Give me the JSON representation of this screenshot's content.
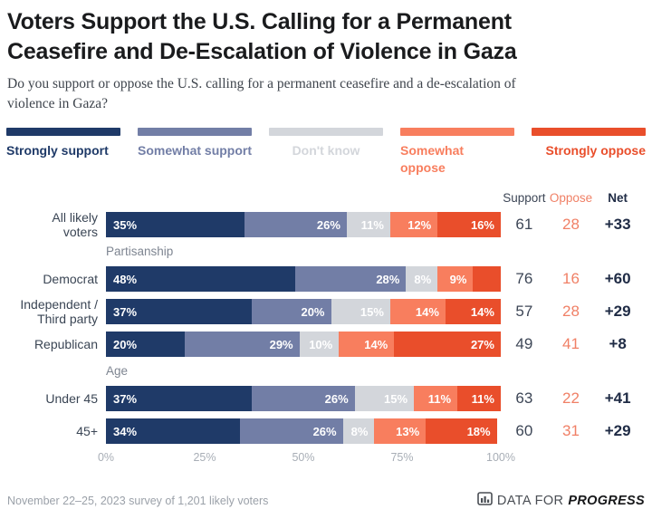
{
  "header": {
    "title_lines": [
      "Voters Support the U.S. Calling for a Permanent",
      "Ceasefire and De-Escalation of Violence in Gaza"
    ],
    "subtitle_lines": [
      "Do you support or oppose the U.S. calling for a permanent ceasefire and a de-escalation of",
      "violence in Gaza?"
    ]
  },
  "colors": {
    "strongly_support": "#1f3a68",
    "somewhat_support": "#727ea6",
    "dont_know": "#d3d6db",
    "somewhat_oppose": "#f87e5e",
    "strongly_oppose": "#e94e2b",
    "support_text": "#3d4656",
    "oppose_text": "#f08066",
    "net_text": "#1f2b45"
  },
  "chart_data": {
    "type": "bar",
    "stacked": true,
    "orientation": "horizontal",
    "x_range": [
      0,
      100
    ],
    "legend": [
      {
        "label": "Strongly support",
        "color": "#1f3a68"
      },
      {
        "label": "Somewhat support",
        "color": "#727ea6"
      },
      {
        "label": "Don't know",
        "color": "#d3d6db"
      },
      {
        "label": "Somewhat oppose",
        "color": "#f87e5e"
      },
      {
        "label": "Strongly oppose",
        "color": "#e94e2b"
      }
    ],
    "value_columns": [
      "Support",
      "Oppose",
      "Net"
    ],
    "x_ticks": [
      "0%",
      "25%",
      "50%",
      "75%",
      "100%"
    ],
    "groups": [
      {
        "section": "",
        "rows": [
          {
            "label": "All likely\nvoters",
            "values": [
              35,
              26,
              11,
              12,
              16
            ],
            "segment_labels": [
              "35%",
              "26%",
              "11%",
              "12%",
              "16%"
            ],
            "support": "61",
            "oppose": "28",
            "net": "+33"
          }
        ]
      },
      {
        "section": "Partisanship",
        "rows": [
          {
            "label": "Democrat",
            "values": [
              48,
              28,
              8,
              9,
              7
            ],
            "segment_labels": [
              "48%",
              "28%",
              "8%",
              "9%",
              ""
            ],
            "support": "76",
            "oppose": "16",
            "net": "+60"
          },
          {
            "label": "Independent /\nThird party",
            "values": [
              37,
              20,
              15,
              14,
              14
            ],
            "segment_labels": [
              "37%",
              "20%",
              "15%",
              "14%",
              "14%"
            ],
            "support": "57",
            "oppose": "28",
            "net": "+29"
          },
          {
            "label": "Republican",
            "values": [
              20,
              29,
              10,
              14,
              27
            ],
            "segment_labels": [
              "20%",
              "29%",
              "10%",
              "14%",
              "27%"
            ],
            "support": "49",
            "oppose": "41",
            "net": "+8"
          }
        ]
      },
      {
        "section": "Age",
        "rows": [
          {
            "label": "Under 45",
            "values": [
              37,
              26,
              15,
              11,
              11
            ],
            "segment_labels": [
              "37%",
              "26%",
              "15%",
              "11%",
              "11%"
            ],
            "support": "63",
            "oppose": "22",
            "net": "+41"
          },
          {
            "label": "45+",
            "values": [
              34,
              26,
              8,
              13,
              18
            ],
            "segment_labels": [
              "34%",
              "26%",
              "8%",
              "13%",
              "18%"
            ],
            "support": "60",
            "oppose": "31",
            "net": "+29"
          }
        ]
      }
    ]
  },
  "footer": {
    "note": "November 22–25, 2023 survey of 1,201 likely voters",
    "brand_prefix": "DATA FOR",
    "brand_suffix": "PROGRESS"
  }
}
